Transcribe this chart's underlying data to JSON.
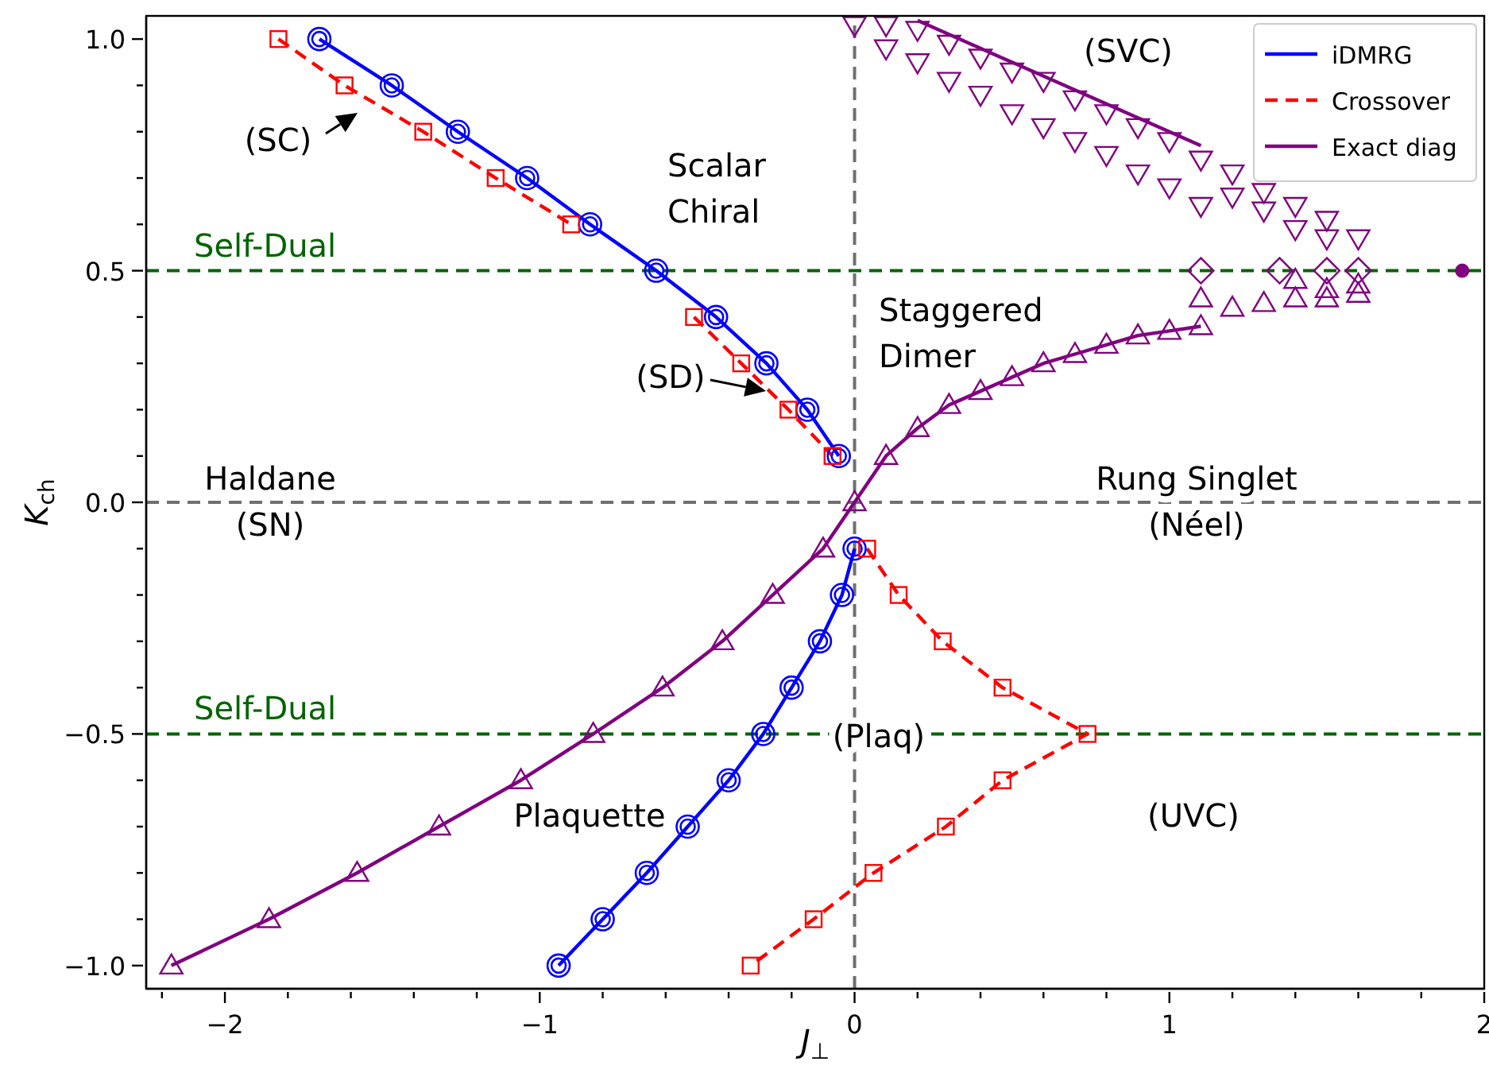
{
  "chart_data": {
    "type": "line",
    "xlabel": "J$_{⊥}$",
    "ylabel": "K$_{ch}$",
    "xlim": [
      -2.25,
      2
    ],
    "ylim": [
      -1.05,
      1.05
    ],
    "xticks": [
      {
        "value": -2.2,
        "label": null
      },
      {
        "value": -2,
        "label": "−2"
      },
      {
        "value": -1.8,
        "label": null
      },
      {
        "value": -1.6,
        "label": null
      },
      {
        "value": -1.4,
        "label": null
      },
      {
        "value": -1.2,
        "label": null
      },
      {
        "value": -1,
        "label": "−1"
      },
      {
        "value": -0.8,
        "label": null
      },
      {
        "value": -0.6,
        "label": null
      },
      {
        "value": -0.4,
        "label": null
      },
      {
        "value": -0.2,
        "label": null
      },
      0,
      {
        "value": 0.2,
        "label": null
      },
      {
        "value": 0.4,
        "label": null
      },
      {
        "value": 0.6,
        "label": null
      },
      {
        "value": 0.8,
        "label": null
      },
      1,
      {
        "value": 1.2,
        "label": null
      },
      {
        "value": 1.4,
        "label": null
      },
      {
        "value": 1.6,
        "label": null
      },
      {
        "value": 1.8,
        "label": null
      },
      2
    ],
    "yticks": [
      {
        "value": -1,
        "label": "−1.0"
      },
      {
        "value": -0.9,
        "label": null
      },
      {
        "value": -0.8,
        "label": null
      },
      {
        "value": -0.7,
        "label": null
      },
      {
        "value": -0.6,
        "label": null
      },
      {
        "value": -0.5,
        "label": "−0.5"
      },
      {
        "value": -0.4,
        "label": null
      },
      {
        "value": -0.3,
        "label": null
      },
      {
        "value": -0.2,
        "label": null
      },
      {
        "value": -0.1,
        "label": null
      },
      {
        "value": 0,
        "label": "0.0"
      },
      {
        "value": 0.1,
        "label": null
      },
      {
        "value": 0.2,
        "label": null
      },
      {
        "value": 0.3,
        "label": null
      },
      {
        "value": 0.4,
        "label": null
      },
      {
        "value": 0.5,
        "label": "0.5"
      },
      {
        "value": 0.6,
        "label": null
      },
      {
        "value": 0.7,
        "label": null
      },
      {
        "value": 0.8,
        "label": null
      },
      {
        "value": 0.9,
        "label": null
      },
      {
        "value": 1,
        "label": "1.0"
      }
    ],
    "legend": "top right",
    "series": [
      {
        "name": "iDMRG",
        "color": "#0000ff",
        "marker": "circle",
        "x": [
          -1.7,
          -1.47,
          -1.26,
          -1.04,
          -0.84,
          -0.63,
          -0.44,
          -0.28,
          -0.15,
          -0.05
        ],
        "values": [
          1.0,
          0.9,
          0.8,
          0.7,
          0.6,
          0.5,
          0.4,
          0.3,
          0.2,
          0.1
        ]
      },
      {
        "color": "#0000ff",
        "marker": "circle",
        "x": [
          -0.94,
          -0.8,
          -0.66,
          -0.53,
          -0.4,
          -0.29,
          -0.2,
          -0.11,
          -0.04,
          0.0
        ],
        "values": [
          -1.0,
          -0.9,
          -0.8,
          -0.7,
          -0.6,
          -0.5,
          -0.4,
          -0.3,
          -0.2,
          -0.1
        ]
      },
      {
        "name": "Crossover",
        "color": "#ff0000",
        "marker": "square",
        "line_style": "dashed",
        "x": [
          -1.83,
          -1.62,
          -1.37,
          -1.14,
          -0.9
        ],
        "values": [
          1.0,
          0.9,
          0.8,
          0.7,
          0.6
        ]
      },
      {
        "color": "#ff0000",
        "marker": "square",
        "line_style": "dashed",
        "x": [
          -0.51,
          -0.36,
          -0.21,
          -0.07
        ],
        "values": [
          0.4,
          0.3,
          0.2,
          0.1
        ]
      },
      {
        "color": "#ff0000",
        "marker": "square",
        "line_style": "dashed",
        "x": [
          0.04,
          0.14,
          0.28,
          0.47,
          0.74,
          0.47,
          0.29,
          0.06,
          -0.13,
          -0.33
        ],
        "values": [
          -0.1,
          -0.2,
          -0.3,
          -0.4,
          -0.5,
          -0.6,
          -0.7,
          -0.8,
          -0.9,
          -1.0
        ]
      },
      {
        "name": "Exact diag",
        "color": "#800080",
        "marker": "triangle",
        "x": [
          -2.17,
          -1.86,
          -1.58,
          -1.32,
          -1.06,
          -0.83,
          -0.61,
          -0.42,
          -0.26,
          -0.1,
          0,
          0.1,
          0.2,
          0.3,
          0.4,
          0.5,
          0.6,
          0.7,
          0.8,
          0.9,
          1.0,
          1.1
        ],
        "values": [
          -1.0,
          -0.9,
          -0.8,
          -0.7,
          -0.6,
          -0.5,
          -0.4,
          -0.3,
          -0.2,
          -0.1,
          0,
          0.1,
          0.16,
          0.21,
          0.24,
          0.27,
          0.3,
          0.32,
          0.34,
          0.36,
          0.37,
          0.38
        ]
      },
      {
        "color": "#800080",
        "marker": "none",
        "x": [
          0.2,
          1.1
        ],
        "values": [
          1.04,
          0.77
        ]
      },
      {
        "type": "scatter",
        "color": "#800080",
        "marker": "triangle-down",
        "x": [
          0,
          0.1,
          0.1,
          0.2,
          0.2,
          0.3,
          0.3,
          0.4,
          0.4,
          0.5,
          0.5,
          0.6,
          0.6,
          0.7,
          0.7,
          0.8,
          0.8,
          0.9,
          0.9,
          1.0,
          1.0,
          1.1,
          1.1,
          1.2,
          1.2,
          1.3,
          1.3,
          1.4,
          1.4,
          1.5,
          1.5,
          1.6
        ],
        "values": [
          1.03,
          1.03,
          0.98,
          1.02,
          0.95,
          0.99,
          0.91,
          0.96,
          0.88,
          0.93,
          0.84,
          0.91,
          0.81,
          0.87,
          0.78,
          0.84,
          0.75,
          0.81,
          0.71,
          0.78,
          0.68,
          0.74,
          0.64,
          0.71,
          0.66,
          0.67,
          0.63,
          0.64,
          0.59,
          0.61,
          0.57,
          0.57
        ]
      },
      {
        "type": "scatter",
        "color": "#800080",
        "marker": "triangle",
        "x": [
          1.1,
          1.2,
          1.3,
          1.4,
          1.4,
          1.5,
          1.5,
          1.6,
          1.6
        ],
        "values": [
          0.44,
          0.42,
          0.43,
          0.48,
          0.44,
          0.46,
          0.44,
          0.47,
          0.45
        ]
      },
      {
        "type": "scatter",
        "color": "#800080",
        "marker": "diamond",
        "x": [
          1.1,
          1.35,
          1.5,
          1.6
        ],
        "values": [
          0.5,
          0.5,
          0.5,
          0.5
        ]
      },
      {
        "type": "scatter",
        "color": "#800080",
        "marker": "circle",
        "x": [
          1.93
        ],
        "values": [
          0.5
        ]
      }
    ],
    "ref_lines": [
      {
        "axis": "y",
        "value": 0.5,
        "label": "Self-Dual",
        "color": "#006400",
        "line_style": "dashed"
      },
      {
        "axis": "y",
        "value": -0.5,
        "label": "Self-Dual",
        "color": "#006400",
        "line_style": "dashed"
      },
      {
        "axis": "y",
        "value": 0,
        "color": "#707070",
        "line_style": "dashed"
      },
      {
        "axis": "x",
        "value": 0,
        "color": "#707070",
        "line_style": "dashed"
      }
    ],
    "annotations": [
      "(SC)",
      "Scalar\nChiral",
      "(SD)",
      "Staggered\nDimer",
      "(SVC)",
      "Haldane\n(SN)",
      "Rung Singlet\n(Néel)",
      "(Plaq)",
      "Plaquette",
      "(UVC)"
    ]
  }
}
